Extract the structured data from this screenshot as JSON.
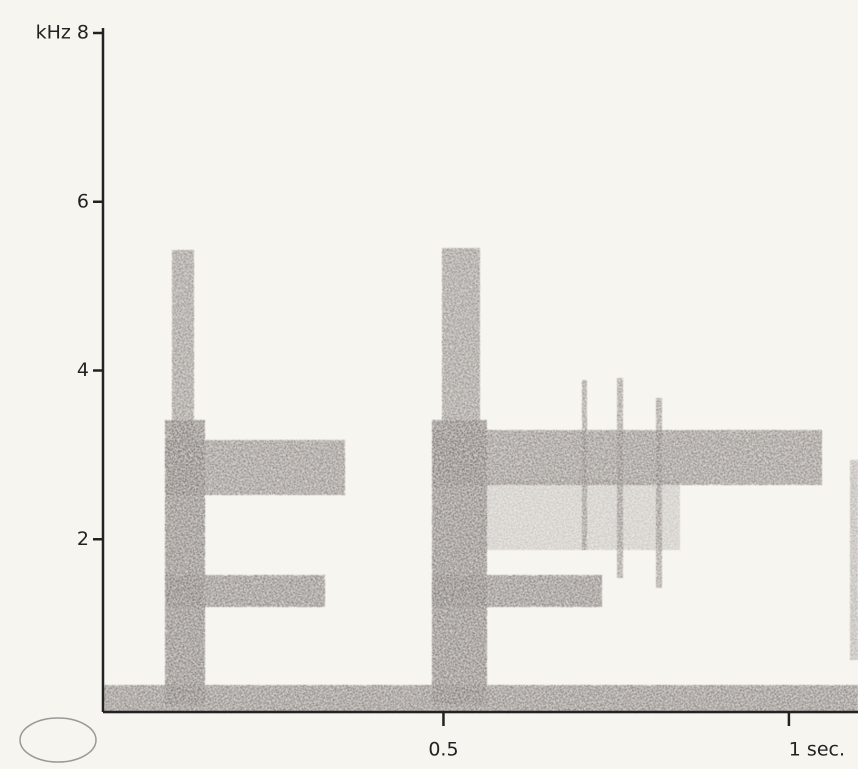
{
  "chart_data": {
    "type": "spectrogram",
    "xlim": [
      0,
      1.1
    ],
    "xticks": [
      0.5,
      {
        "value": 1,
        "label": "1 sec."
      }
    ],
    "ylim": [
      0,
      8
    ],
    "yticks": [
      2,
      4,
      6,
      {
        "value": 8,
        "label": "kHz 8"
      }
    ],
    "color": "#3a3030"
  }
}
